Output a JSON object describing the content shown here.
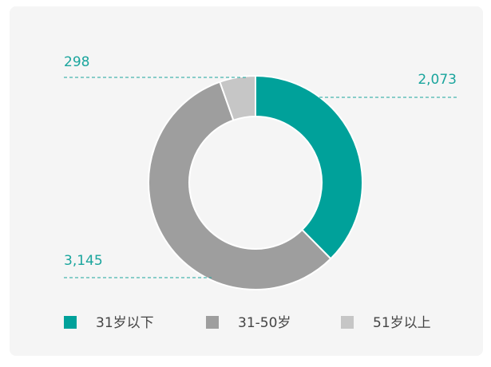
{
  "chart_data": {
    "type": "donut",
    "categories": [
      "31岁以下",
      "31-50岁",
      "51岁以上"
    ],
    "values": [
      2073,
      3145,
      298
    ],
    "value_labels": [
      "2,073",
      "3,145",
      "298"
    ],
    "colors": [
      "#00a19a",
      "#9e9e9e",
      "#c6c6c6"
    ],
    "label_color": "#1aa59d",
    "legend": "bottom"
  }
}
